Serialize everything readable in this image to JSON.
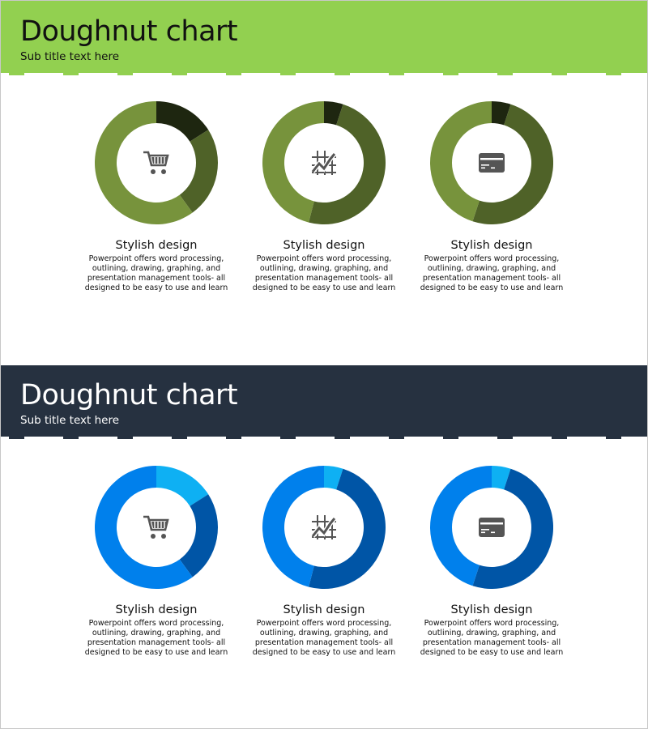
{
  "sections": [
    {
      "title": "Doughnut chart",
      "subtitle": "Sub title text here",
      "band_color": "#92d050",
      "text_color": "#111111",
      "dash_color": "#92d050"
    },
    {
      "title": "Doughnut chart",
      "subtitle": "Sub title text here",
      "band_color": "#263140",
      "text_color": "#ffffff",
      "dash_color": "#263140"
    }
  ],
  "captions": {
    "title": "Stylish design",
    "body": "Powerpoint offers word processing, outlining, drawing, graphing, and presentation management tools- all designed to be easy to use and learn"
  },
  "chart_data": [
    {
      "type": "pie",
      "style": "doughnut",
      "section": 0,
      "icon": "shopping-cart-icon",
      "values": [
        16,
        24,
        60
      ],
      "colors": [
        "#1e2610",
        "#4f6228",
        "#77933c"
      ]
    },
    {
      "type": "pie",
      "style": "doughnut",
      "section": 0,
      "icon": "line-chart-grid-icon",
      "values": [
        5,
        49,
        46
      ],
      "colors": [
        "#1e2610",
        "#4f6228",
        "#77933c"
      ]
    },
    {
      "type": "pie",
      "style": "doughnut",
      "section": 0,
      "icon": "credit-card-icon",
      "values": [
        5,
        50,
        45
      ],
      "colors": [
        "#1e2610",
        "#4f6228",
        "#77933c"
      ]
    },
    {
      "type": "pie",
      "style": "doughnut",
      "section": 1,
      "icon": "shopping-cart-icon",
      "values": [
        16,
        24,
        60
      ],
      "colors": [
        "#0eb0f3",
        "#0055a6",
        "#0080ec"
      ]
    },
    {
      "type": "pie",
      "style": "doughnut",
      "section": 1,
      "icon": "line-chart-grid-icon",
      "values": [
        5,
        49,
        46
      ],
      "colors": [
        "#0eb0f3",
        "#0055a6",
        "#0080ec"
      ]
    },
    {
      "type": "pie",
      "style": "doughnut",
      "section": 1,
      "icon": "credit-card-icon",
      "values": [
        5,
        50,
        45
      ],
      "colors": [
        "#0eb0f3",
        "#0055a6",
        "#0080ec"
      ]
    }
  ]
}
